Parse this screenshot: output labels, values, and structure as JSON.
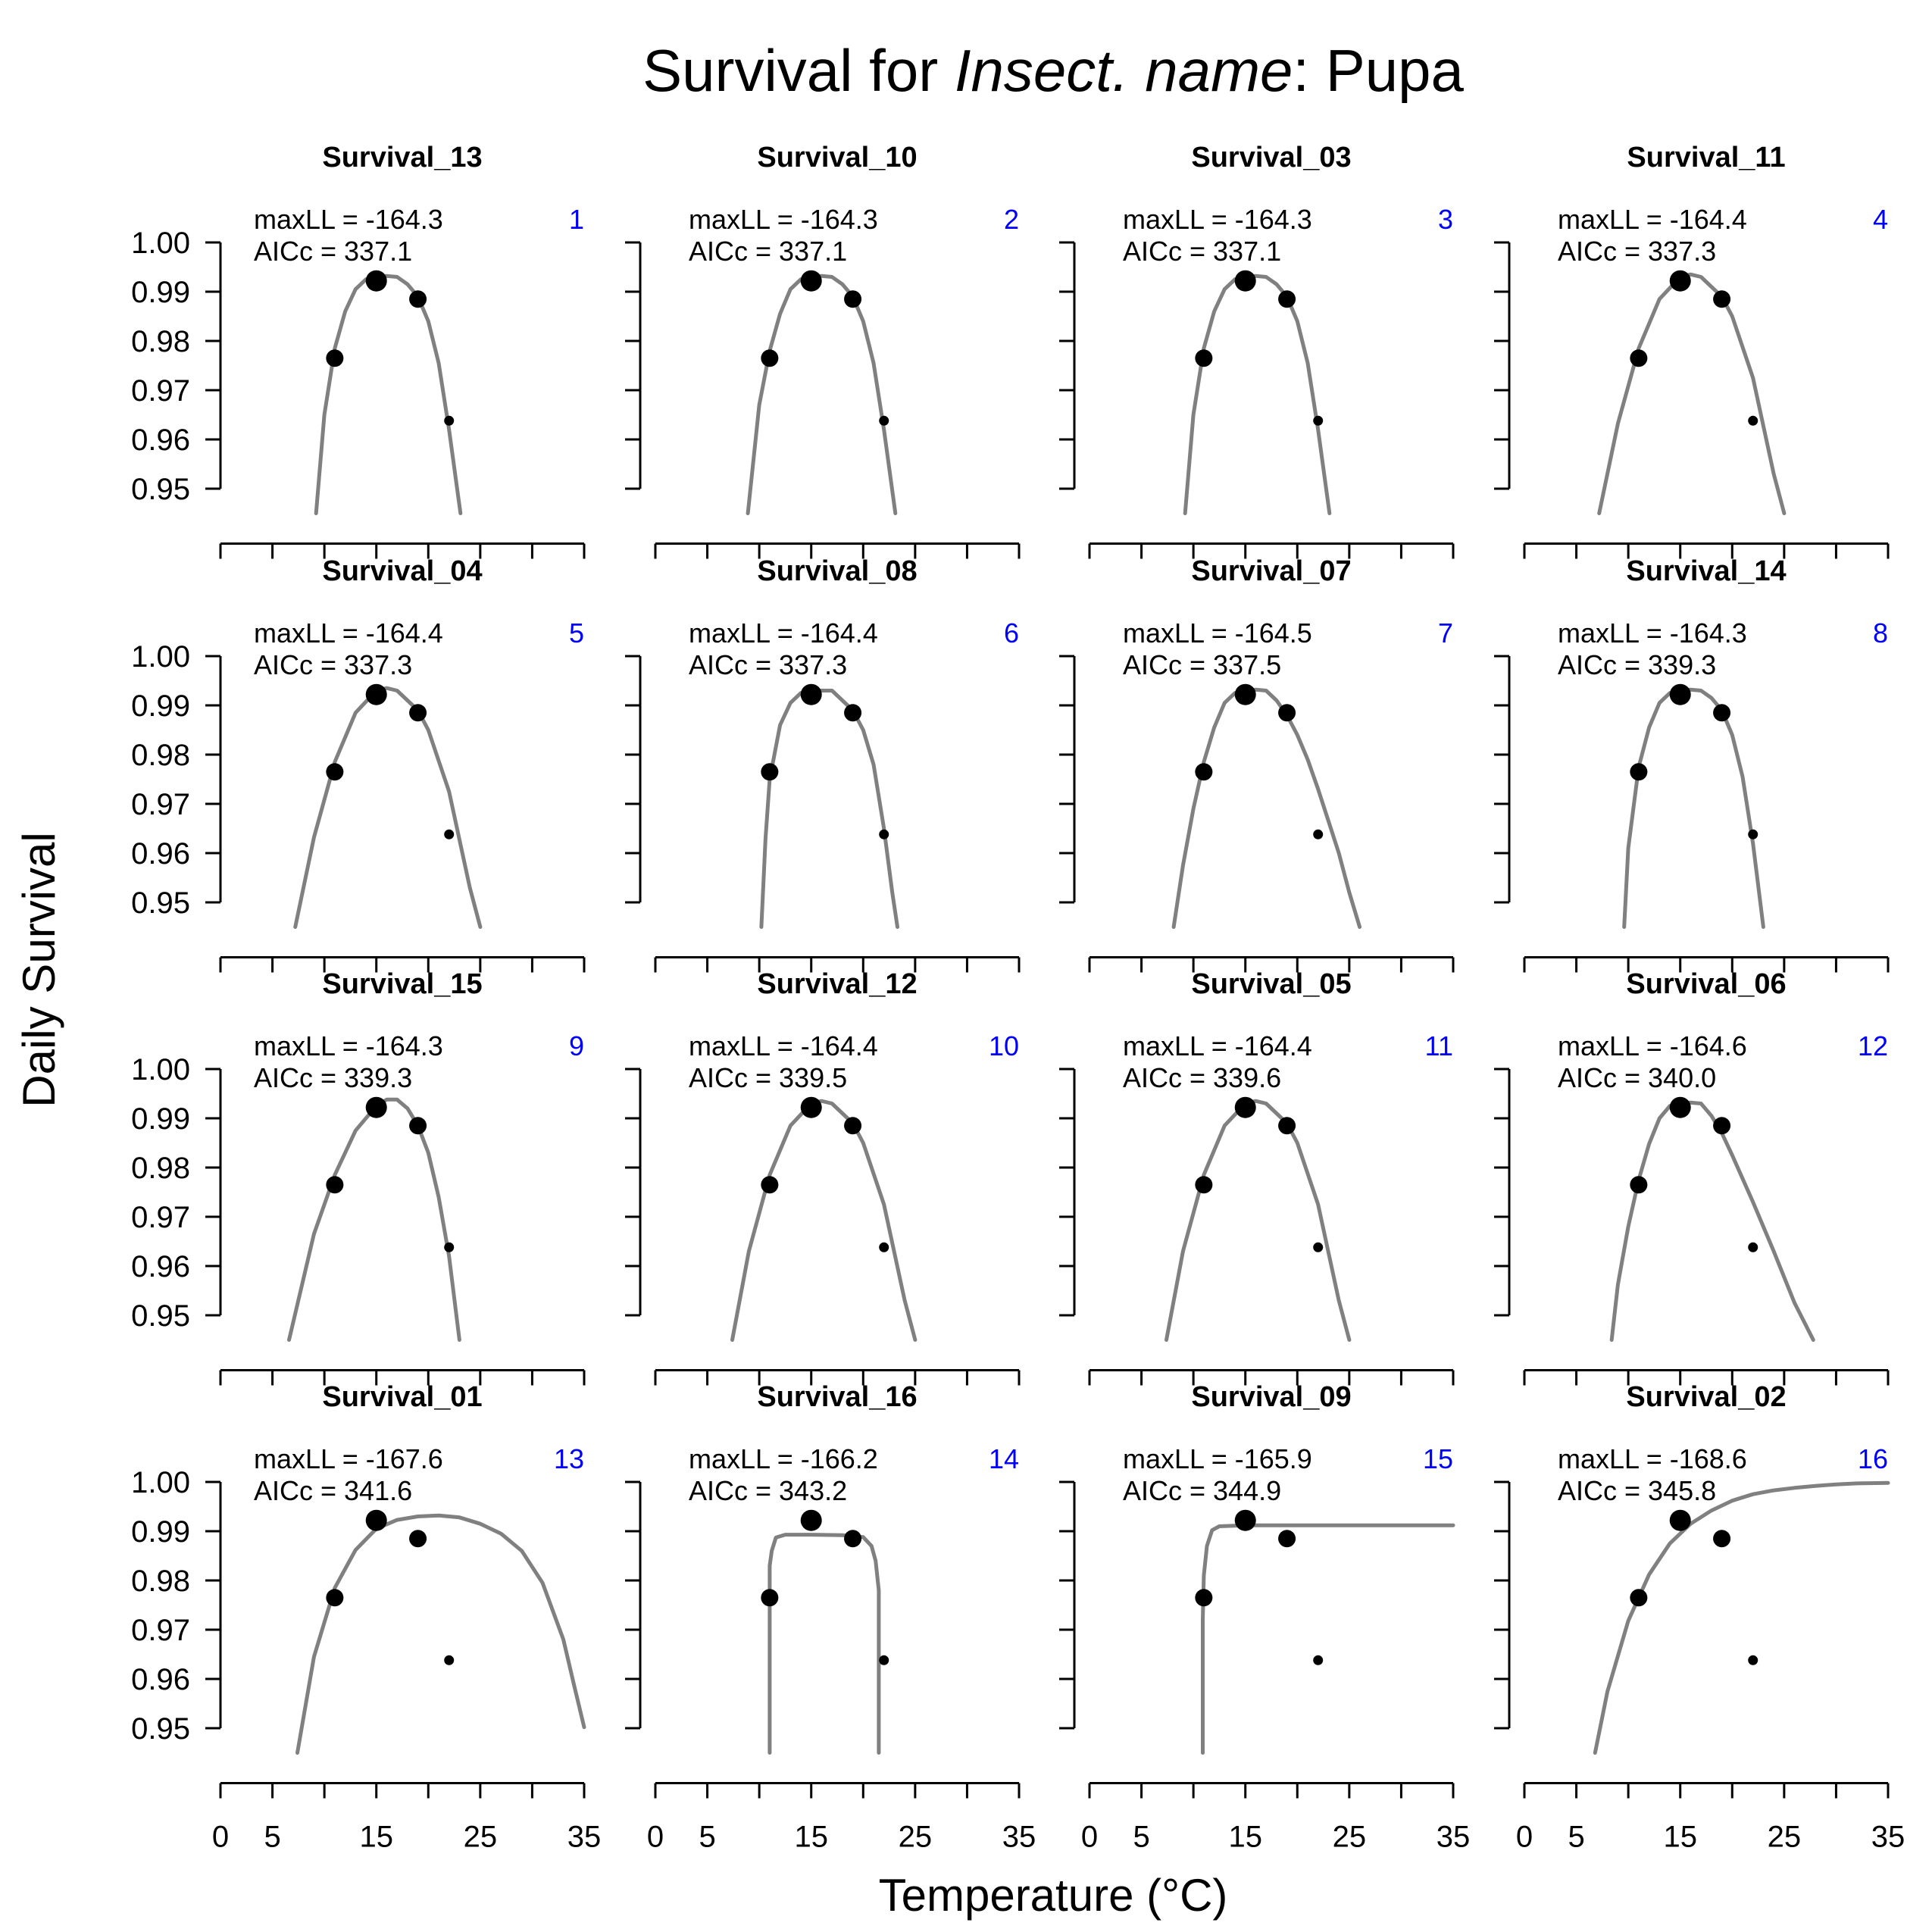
{
  "title": {
    "prefix": "Survival for ",
    "species": "Insect. name",
    "suffix": ": Pupa"
  },
  "colors": {
    "curve": "#808080",
    "points": "#000000",
    "rank": "#0000FF",
    "axes": "#000000"
  },
  "chart_data": {
    "type": "scatter",
    "layout": "small-multiples 4x4",
    "xlabel": "Temperature (°C)",
    "ylabel": "Daily Survival",
    "xlim": [
      0,
      35
    ],
    "ylim": [
      0.945,
      1.0
    ],
    "x_ticks": [
      0,
      5,
      10,
      15,
      20,
      25,
      30,
      35
    ],
    "x_tick_labels": [
      "0",
      "5",
      "15",
      "25",
      "35"
    ],
    "y_ticks": [
      0.95,
      0.96,
      0.97,
      0.98,
      0.99,
      1.0
    ],
    "y_tick_labels": [
      "0.95",
      "0.96",
      "0.97",
      "0.98",
      "0.99",
      "1.00"
    ],
    "observations": [
      {
        "x": 11,
        "y": 0.9765,
        "size": "large"
      },
      {
        "x": 15,
        "y": 0.9922,
        "size": "largest"
      },
      {
        "x": 19,
        "y": 0.9885,
        "size": "large"
      },
      {
        "x": 22,
        "y": 0.9638,
        "size": "small"
      }
    ],
    "models": [
      {
        "rank": "1",
        "name": "Survival_13",
        "maxLL": "maxLL = -164.3",
        "aicc": "AICc = 337.1",
        "curve": [
          [
            9.2,
            0.945
          ],
          [
            10,
            0.965
          ],
          [
            11,
            0.9785
          ],
          [
            12,
            0.986
          ],
          [
            13,
            0.9905
          ],
          [
            14,
            0.9925
          ],
          [
            15,
            0.993
          ],
          [
            16,
            0.9932
          ],
          [
            17,
            0.993
          ],
          [
            18,
            0.9915
          ],
          [
            19,
            0.989
          ],
          [
            20,
            0.984
          ],
          [
            21,
            0.9755
          ],
          [
            22,
            0.962
          ],
          [
            23.1,
            0.945
          ]
        ]
      },
      {
        "rank": "2",
        "name": "Survival_10",
        "maxLL": "maxLL = -164.3",
        "aicc": "AICc = 337.1",
        "curve": [
          [
            8.9,
            0.945
          ],
          [
            10,
            0.967
          ],
          [
            11,
            0.978
          ],
          [
            12,
            0.9855
          ],
          [
            13,
            0.9905
          ],
          [
            14,
            0.9925
          ],
          [
            15,
            0.993
          ],
          [
            16,
            0.9932
          ],
          [
            17,
            0.993
          ],
          [
            18,
            0.9915
          ],
          [
            19,
            0.989
          ],
          [
            20,
            0.984
          ],
          [
            21,
            0.9755
          ],
          [
            22,
            0.962
          ],
          [
            23.1,
            0.945
          ]
        ]
      },
      {
        "rank": "3",
        "name": "Survival_03",
        "maxLL": "maxLL = -164.3",
        "aicc": "AICc = 337.1",
        "curve": [
          [
            9.2,
            0.945
          ],
          [
            10,
            0.965
          ],
          [
            11,
            0.9785
          ],
          [
            12,
            0.986
          ],
          [
            13,
            0.9905
          ],
          [
            14,
            0.9925
          ],
          [
            15,
            0.993
          ],
          [
            16,
            0.9932
          ],
          [
            17,
            0.993
          ],
          [
            18,
            0.9915
          ],
          [
            19,
            0.989
          ],
          [
            20,
            0.984
          ],
          [
            21,
            0.9755
          ],
          [
            22,
            0.962
          ],
          [
            23.1,
            0.945
          ]
        ]
      },
      {
        "rank": "4",
        "name": "Survival_11",
        "maxLL": "maxLL = -164.4",
        "aicc": "AICc = 337.3",
        "curve": [
          [
            7.2,
            0.945
          ],
          [
            9,
            0.9632
          ],
          [
            11,
            0.9785
          ],
          [
            13,
            0.9885
          ],
          [
            15,
            0.993
          ],
          [
            16,
            0.9935
          ],
          [
            17,
            0.993
          ],
          [
            19,
            0.989
          ],
          [
            20,
            0.985
          ],
          [
            22,
            0.9725
          ],
          [
            24,
            0.953
          ],
          [
            25,
            0.945
          ]
        ]
      },
      {
        "rank": "5",
        "name": "Survival_04",
        "maxLL": "maxLL = -164.4",
        "aicc": "AICc = 337.3",
        "curve": [
          [
            7.2,
            0.945
          ],
          [
            9,
            0.9632
          ],
          [
            11,
            0.9785
          ],
          [
            13,
            0.9885
          ],
          [
            15,
            0.993
          ],
          [
            16,
            0.9935
          ],
          [
            17,
            0.993
          ],
          [
            19,
            0.989
          ],
          [
            20,
            0.985
          ],
          [
            22,
            0.9725
          ],
          [
            24,
            0.953
          ],
          [
            25,
            0.945
          ]
        ]
      },
      {
        "rank": "6",
        "name": "Survival_08",
        "maxLL": "maxLL = -164.4",
        "aicc": "AICc = 337.3",
        "curve": [
          [
            10.2,
            0.945
          ],
          [
            10.6,
            0.963
          ],
          [
            11,
            0.975
          ],
          [
            12,
            0.986
          ],
          [
            13,
            0.9905
          ],
          [
            14,
            0.9925
          ],
          [
            15,
            0.993
          ],
          [
            17,
            0.993
          ],
          [
            19,
            0.989
          ],
          [
            20,
            0.985
          ],
          [
            21,
            0.978
          ],
          [
            22,
            0.965
          ],
          [
            22.8,
            0.952
          ],
          [
            23.3,
            0.945
          ]
        ]
      },
      {
        "rank": "7",
        "name": "Survival_07",
        "maxLL": "maxLL = -164.5",
        "aicc": "AICc = 337.5",
        "curve": [
          [
            8.1,
            0.945
          ],
          [
            9,
            0.9575
          ],
          [
            10,
            0.969
          ],
          [
            11,
            0.9785
          ],
          [
            12,
            0.9855
          ],
          [
            13,
            0.9905
          ],
          [
            14,
            0.9925
          ],
          [
            15,
            0.993
          ],
          [
            16,
            0.9932
          ],
          [
            17,
            0.993
          ],
          [
            18,
            0.991
          ],
          [
            19,
            0.988
          ],
          [
            20,
            0.984
          ],
          [
            21,
            0.979
          ],
          [
            22,
            0.973
          ],
          [
            23,
            0.9665
          ],
          [
            24,
            0.96
          ],
          [
            25,
            0.952
          ],
          [
            26,
            0.945
          ]
        ]
      },
      {
        "rank": "8",
        "name": "Survival_14",
        "maxLL": "maxLL = -164.3",
        "aicc": "AICc = 339.3",
        "curve": [
          [
            9.6,
            0.945
          ],
          [
            10,
            0.961
          ],
          [
            11,
            0.9775
          ],
          [
            12,
            0.9855
          ],
          [
            13,
            0.9905
          ],
          [
            14,
            0.9925
          ],
          [
            15,
            0.993
          ],
          [
            16,
            0.9932
          ],
          [
            17,
            0.993
          ],
          [
            18,
            0.9915
          ],
          [
            19,
            0.989
          ],
          [
            20,
            0.984
          ],
          [
            21,
            0.9755
          ],
          [
            22,
            0.962
          ],
          [
            23,
            0.945
          ]
        ]
      },
      {
        "rank": "9",
        "name": "Survival_15",
        "maxLL": "maxLL = -164.3",
        "aicc": "AICc = 339.3",
        "curve": [
          [
            6.6,
            0.945
          ],
          [
            9,
            0.9665
          ],
          [
            11,
            0.9785
          ],
          [
            13,
            0.9875
          ],
          [
            15,
            0.9925
          ],
          [
            16,
            0.9938
          ],
          [
            17,
            0.9938
          ],
          [
            18,
            0.992
          ],
          [
            19,
            0.9885
          ],
          [
            20,
            0.983
          ],
          [
            21,
            0.974
          ],
          [
            22,
            0.962
          ],
          [
            23,
            0.945
          ]
        ]
      },
      {
        "rank": "10",
        "name": "Survival_12",
        "maxLL": "maxLL = -164.4",
        "aicc": "AICc = 339.5",
        "curve": [
          [
            7.4,
            0.945
          ],
          [
            9,
            0.963
          ],
          [
            11,
            0.9785
          ],
          [
            13,
            0.9885
          ],
          [
            15,
            0.993
          ],
          [
            16,
            0.9935
          ],
          [
            17,
            0.993
          ],
          [
            19,
            0.989
          ],
          [
            20,
            0.985
          ],
          [
            22,
            0.9725
          ],
          [
            24,
            0.953
          ],
          [
            25,
            0.945
          ]
        ]
      },
      {
        "rank": "11",
        "name": "Survival_05",
        "maxLL": "maxLL = -164.4",
        "aicc": "AICc = 339.6",
        "curve": [
          [
            7.4,
            0.945
          ],
          [
            9,
            0.963
          ],
          [
            11,
            0.9785
          ],
          [
            13,
            0.9885
          ],
          [
            15,
            0.993
          ],
          [
            16,
            0.9935
          ],
          [
            17,
            0.993
          ],
          [
            19,
            0.989
          ],
          [
            20,
            0.985
          ],
          [
            22,
            0.9725
          ],
          [
            24,
            0.953
          ],
          [
            25,
            0.945
          ]
        ]
      },
      {
        "rank": "12",
        "name": "Survival_06",
        "maxLL": "maxLL = -164.6",
        "aicc": "AICc = 340.0",
        "curve": [
          [
            8.4,
            0.945
          ],
          [
            9,
            0.9562
          ],
          [
            10,
            0.968
          ],
          [
            11,
            0.9775
          ],
          [
            12,
            0.9848
          ],
          [
            13,
            0.99
          ],
          [
            14,
            0.9925
          ],
          [
            15,
            0.993
          ],
          [
            16,
            0.9932
          ],
          [
            17,
            0.993
          ],
          [
            18,
            0.9905
          ],
          [
            19,
            0.987
          ],
          [
            20,
            0.9825
          ],
          [
            22,
            0.973
          ],
          [
            24,
            0.963
          ],
          [
            26,
            0.9525
          ],
          [
            27.8,
            0.945
          ]
        ]
      },
      {
        "rank": "13",
        "name": "Survival_01",
        "maxLL": "maxLL = -167.6",
        "aicc": "AICc = 341.6",
        "curve": [
          [
            7.4,
            0.945
          ],
          [
            9,
            0.9645
          ],
          [
            11,
            0.9785
          ],
          [
            13,
            0.9862
          ],
          [
            15,
            0.9905
          ],
          [
            17,
            0.9923
          ],
          [
            19,
            0.993
          ],
          [
            21,
            0.9932
          ],
          [
            23,
            0.9928
          ],
          [
            25,
            0.9915
          ],
          [
            27,
            0.9895
          ],
          [
            29,
            0.986
          ],
          [
            31,
            0.9795
          ],
          [
            33,
            0.968
          ],
          [
            34,
            0.959
          ],
          [
            35,
            0.9502
          ]
        ]
      },
      {
        "rank": "14",
        "name": "Survival_16",
        "maxLL": "maxLL = -166.2",
        "aicc": "AICc = 343.2",
        "curve": [
          [
            11,
            0.945
          ],
          [
            11,
            0.983
          ],
          [
            11.2,
            0.986
          ],
          [
            11.6,
            0.9887
          ],
          [
            12.5,
            0.9893
          ],
          [
            15,
            0.9893
          ],
          [
            18,
            0.9892
          ],
          [
            20,
            0.9888
          ],
          [
            20.8,
            0.987
          ],
          [
            21.2,
            0.984
          ],
          [
            21.5,
            0.978
          ],
          [
            21.5,
            0.945
          ]
        ]
      },
      {
        "rank": "15",
        "name": "Survival_09",
        "maxLL": "maxLL = -165.9",
        "aicc": "AICc = 344.9",
        "curve": [
          [
            10.9,
            0.945
          ],
          [
            10.9,
            0.972
          ],
          [
            11,
            0.981
          ],
          [
            11.3,
            0.987
          ],
          [
            11.8,
            0.9902
          ],
          [
            12.5,
            0.991
          ],
          [
            15,
            0.9912
          ],
          [
            20,
            0.9912
          ],
          [
            25,
            0.9912
          ],
          [
            30,
            0.9912
          ],
          [
            35,
            0.9912
          ]
        ]
      },
      {
        "rank": "16",
        "name": "Survival_02",
        "maxLL": "maxLL = -168.6",
        "aicc": "AICc = 345.8",
        "curve": [
          [
            6.8,
            0.945
          ],
          [
            8,
            0.9575
          ],
          [
            10,
            0.9718
          ],
          [
            12,
            0.9812
          ],
          [
            14,
            0.9875
          ],
          [
            16,
            0.9915
          ],
          [
            18,
            0.9942
          ],
          [
            20,
            0.9962
          ],
          [
            22,
            0.9975
          ],
          [
            24,
            0.9983
          ],
          [
            26,
            0.9988
          ],
          [
            28,
            0.9992
          ],
          [
            30,
            0.9995
          ],
          [
            32,
            0.9997
          ],
          [
            35,
            0.9998
          ]
        ]
      }
    ]
  }
}
